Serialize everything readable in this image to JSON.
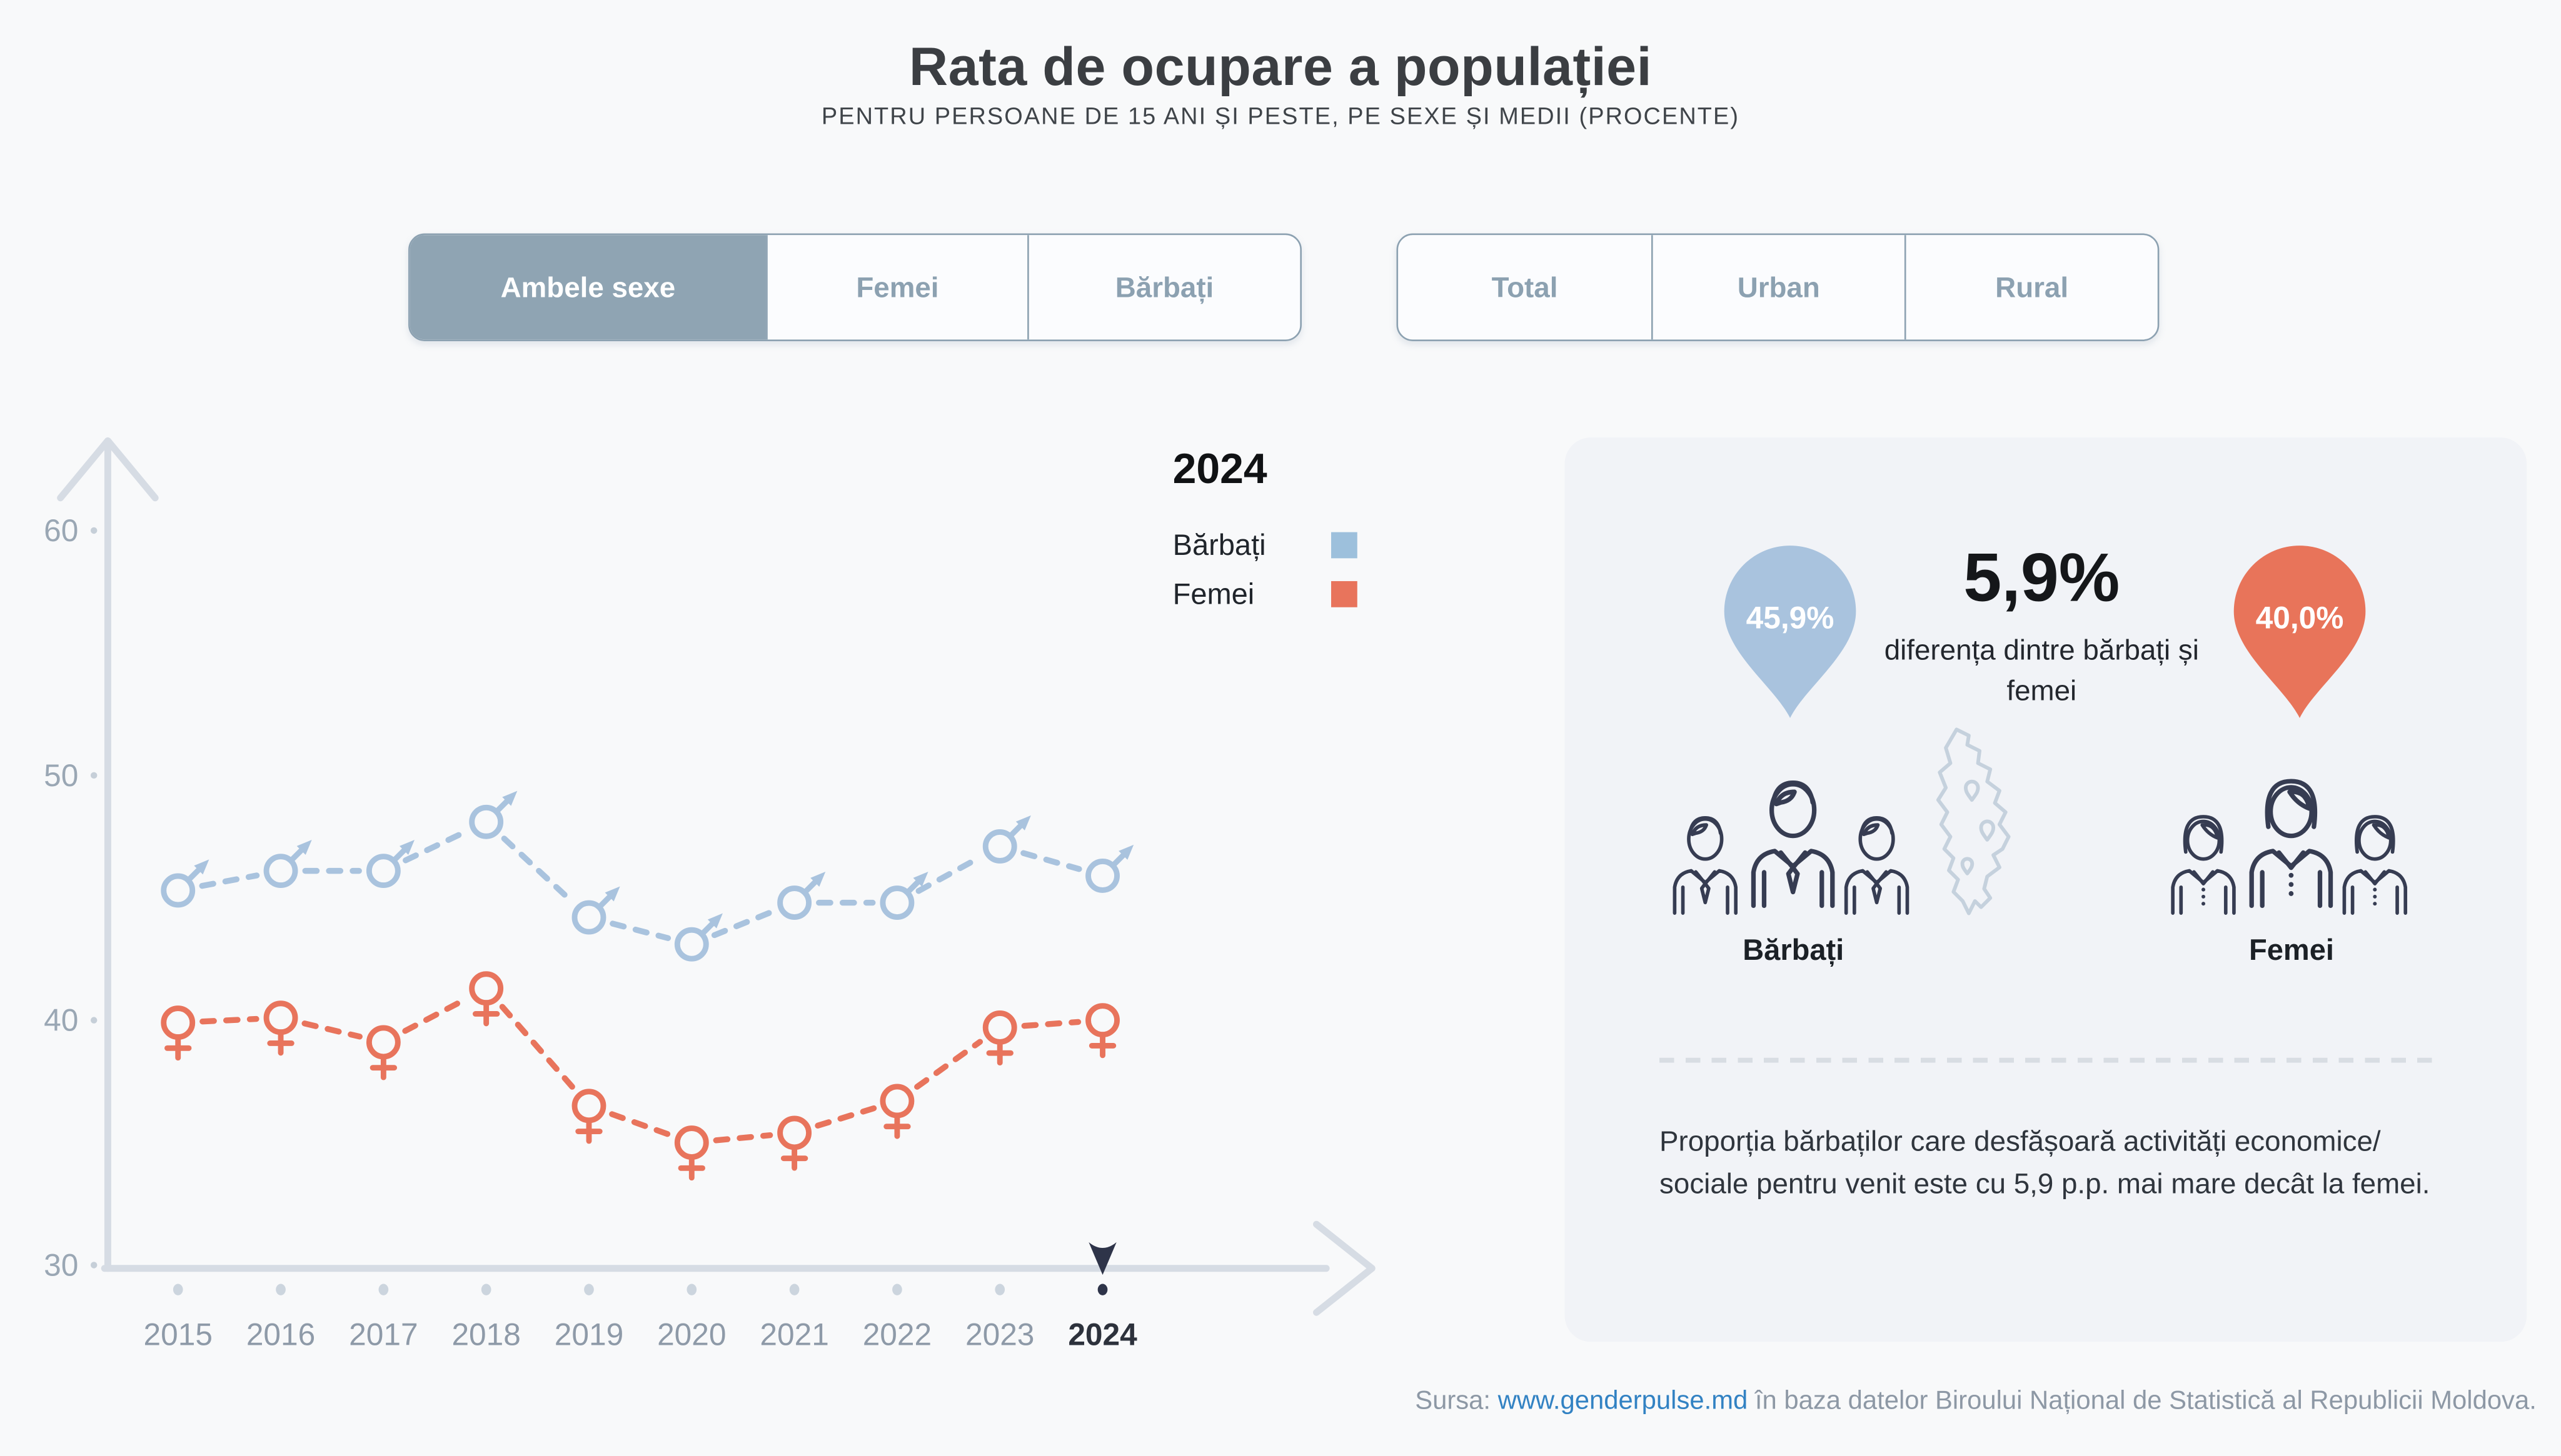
{
  "title": "Rata de ocupare a populației",
  "subtitle": "PENTRU PERSOANE DE 15 ANI ȘI PESTE, PE SEXE ȘI MEDII (PROCENTE)",
  "sex_toggle": {
    "options": [
      {
        "label": "Ambele sexe",
        "active": true
      },
      {
        "label": "Femei",
        "active": false
      },
      {
        "label": "Bărbați",
        "active": false
      }
    ]
  },
  "area_toggle": {
    "options": [
      {
        "label": "Total",
        "active": false
      },
      {
        "label": "Urban",
        "active": false
      },
      {
        "label": "Rural",
        "active": false
      }
    ]
  },
  "legend": {
    "year": "2024",
    "entries": [
      {
        "label": "Bărbați",
        "color": "#9dc0dc"
      },
      {
        "label": "Femei",
        "color": "#e8745c"
      }
    ]
  },
  "chart_data": {
    "type": "line",
    "line_style": "dashed",
    "grid": false,
    "categories": [
      "2015",
      "2016",
      "2017",
      "2018",
      "2019",
      "2020",
      "2021",
      "2022",
      "2023",
      "2024"
    ],
    "series": [
      {
        "name": "Bărbați",
        "marker": "male",
        "color": "#a9c3de",
        "values": [
          45.3,
          46.1,
          46.1,
          48.1,
          44.2,
          43.1,
          44.8,
          44.8,
          47.1,
          45.9
        ]
      },
      {
        "name": "Femei",
        "marker": "female",
        "color": "#e8745c",
        "values": [
          39.9,
          40.1,
          39.1,
          41.3,
          36.5,
          35.0,
          35.4,
          36.7,
          39.7,
          40.0
        ]
      }
    ],
    "ylim": [
      30,
      60
    ],
    "yticks": [
      30,
      40,
      50,
      60
    ],
    "selected_year": "2024",
    "xlabel": "",
    "ylabel": ""
  },
  "panel": {
    "pin_left": {
      "value": "45,9%",
      "color": "#a9c3de"
    },
    "pin_right": {
      "value": "40,0%",
      "color": "#e8745a"
    },
    "diff_value": "5,9%",
    "diff_caption": "diferența dintre bărbați și femei",
    "group_left_label": "Bărbați",
    "group_right_label": "Femei",
    "note": "Proporția bărbaților care desfășoară activități economice/ sociale pentru venit este cu 5,9 p.p. mai mare decât la femei."
  },
  "footer": {
    "prefix": "Sursa:",
    "link": "www.genderpulse.md",
    "suffix": "în baza datelor Biroului Național de Statistică al Republicii Moldova."
  }
}
